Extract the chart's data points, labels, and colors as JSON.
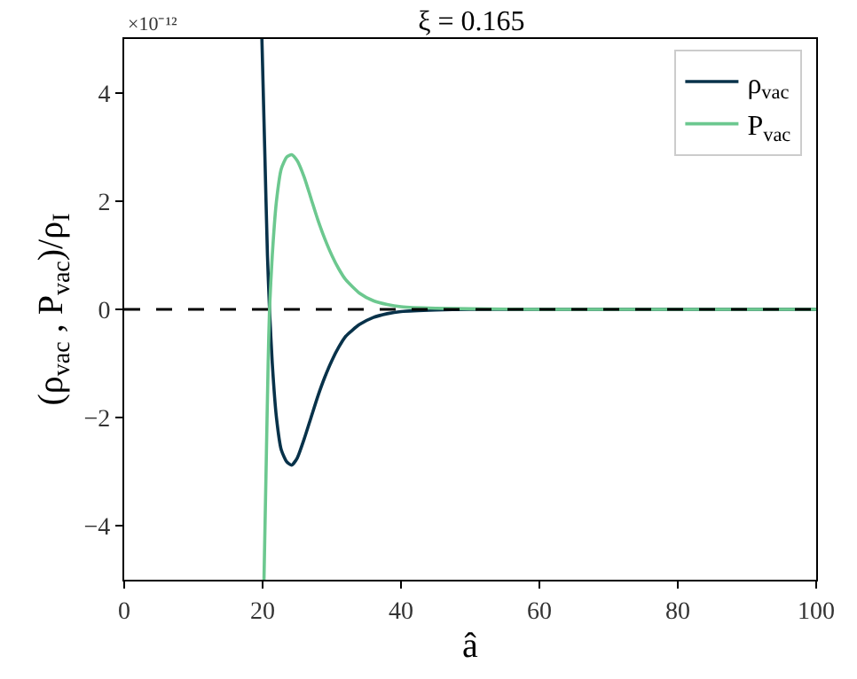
{
  "chart_data": {
    "type": "line",
    "title": "ξ = 0.165",
    "xlabel": "â",
    "ylabel": "(ρ$_{vac}$ , P$_{vac}$)/ρ$_{I}$",
    "annotations": [
      "×10⁻¹²"
    ],
    "series": [
      {
        "name": "ρ$_{vac}$",
        "color": "#08324a",
        "x": [
          19.9,
          20.3,
          20.7,
          21,
          21.4,
          22,
          22.7,
          23.5,
          24.2,
          25,
          26,
          27,
          28,
          29,
          30,
          31,
          32,
          34,
          36,
          38,
          40,
          45,
          50,
          100
        ],
        "values": [
          5,
          3,
          1,
          0,
          -1,
          -2,
          -2.6,
          -2.82,
          -2.88,
          -2.75,
          -2.4,
          -2,
          -1.6,
          -1.25,
          -0.95,
          -0.7,
          -0.5,
          -0.28,
          -0.15,
          -0.08,
          -0.04,
          -0.01,
          0,
          0
        ]
      },
      {
        "name": "P$_{vac}$",
        "color": "#6cc88f",
        "x": [
          20.2,
          20.5,
          20.8,
          21,
          21.4,
          22,
          22.7,
          23.5,
          24.2,
          25,
          26,
          27,
          28,
          29,
          30,
          31,
          32,
          34,
          36,
          38,
          40,
          45,
          50,
          60,
          100
        ],
        "values": [
          -5,
          -3,
          -1,
          0,
          1,
          2,
          2.6,
          2.82,
          2.86,
          2.75,
          2.45,
          2.05,
          1.65,
          1.3,
          1.0,
          0.75,
          0.55,
          0.3,
          0.16,
          0.09,
          0.05,
          0.02,
          0.01,
          0,
          0
        ]
      }
    ],
    "xlim": [
      0,
      100
    ],
    "xticks": [
      0,
      20,
      40,
      60,
      80,
      100
    ],
    "ylim": [
      -5,
      5
    ],
    "yticks": [
      {
        "value": -4,
        "label": "−4"
      },
      {
        "value": -2,
        "label": "−2"
      },
      0,
      2,
      4
    ],
    "ref_lines": [
      {
        "axis": "y",
        "value": 0,
        "color": "#000000",
        "line_style": "dashed"
      }
    ],
    "legend": "top right",
    "marker": "none",
    "line_style": "solid"
  }
}
